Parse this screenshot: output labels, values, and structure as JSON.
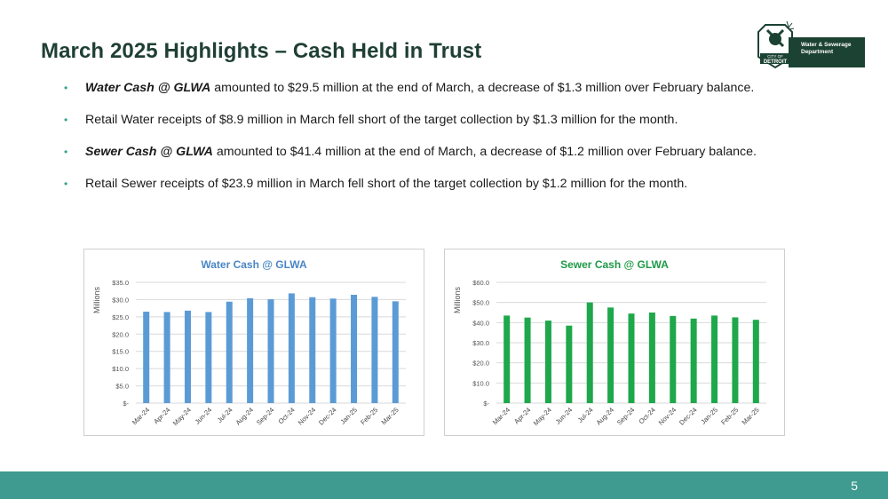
{
  "slide": {
    "title": "March 2025 Highlights – Cash Held in Trust",
    "page_number": "5"
  },
  "logo": {
    "line1": "Water & Sewerage",
    "line2": "Department",
    "seal_line1": "CITY OF",
    "seal_line2": "DETROIT"
  },
  "bullets": [
    {
      "emphasis": "Water Cash @ GLWA",
      "text": " amounted to $29.5 million at the end of March, a decrease of $1.3 million over February balance."
    },
    {
      "emphasis": "",
      "text": "Retail Water receipts of $8.9 million in March fell short of the target collection by $1.3 million for the month."
    },
    {
      "emphasis": "Sewer Cash @ GLWA",
      "text": " amounted to $41.4 million at the end of March, a decrease of $1.2 million over February balance."
    },
    {
      "emphasis": "",
      "text": "Retail Sewer receipts of $23.9 million in March fell short of the target collection by $1.2 million for the month."
    }
  ],
  "colors": {
    "title": "#1f3f35",
    "bullet": "#3aa08f",
    "footer": "#3f9a8f",
    "water_bar": "#5b9bd5",
    "sewer_bar": "#1ea84b"
  },
  "chart_data": [
    {
      "type": "bar",
      "title": "Water Cash @ GLWA",
      "ylabel": "Millions",
      "xlabel": "",
      "categories": [
        "Mar-24",
        "Apr-24",
        "May-24",
        "Jun-24",
        "Jul-24",
        "Aug-24",
        "Sep-24",
        "Oct-24",
        "Nov-24",
        "Dec-24",
        "Jan-25",
        "Feb-25",
        "Mar-25"
      ],
      "values": [
        26.5,
        26.4,
        26.8,
        26.4,
        29.4,
        30.4,
        30.1,
        31.8,
        30.7,
        30.3,
        31.4,
        30.8,
        29.5
      ],
      "ylim": [
        0,
        35
      ],
      "yticks": [
        "$-",
        "$5.0",
        "$10.0",
        "$15.0",
        "$20.0",
        "$25.0",
        "$30.0",
        "$35.0"
      ],
      "grid": true,
      "color": "#5b9bd5"
    },
    {
      "type": "bar",
      "title": "Sewer Cash @ GLWA",
      "ylabel": "Millions",
      "xlabel": "",
      "categories": [
        "Mar-24",
        "Apr-24",
        "May-24",
        "Jun-24",
        "Jul-24",
        "Aug-24",
        "Sep-24",
        "Oct-24",
        "Nov-24",
        "Dec-24",
        "Jan-25",
        "Feb-25",
        "Mar-25"
      ],
      "values": [
        43.5,
        42.5,
        41.0,
        38.5,
        50.0,
        47.5,
        44.5,
        45.0,
        43.3,
        42.0,
        43.5,
        42.6,
        41.4
      ],
      "ylim": [
        0,
        60
      ],
      "yticks": [
        "$-",
        "$10.0",
        "$20.0",
        "$30.0",
        "$40.0",
        "$50.0",
        "$60.0"
      ],
      "grid": true,
      "color": "#1ea84b"
    }
  ]
}
